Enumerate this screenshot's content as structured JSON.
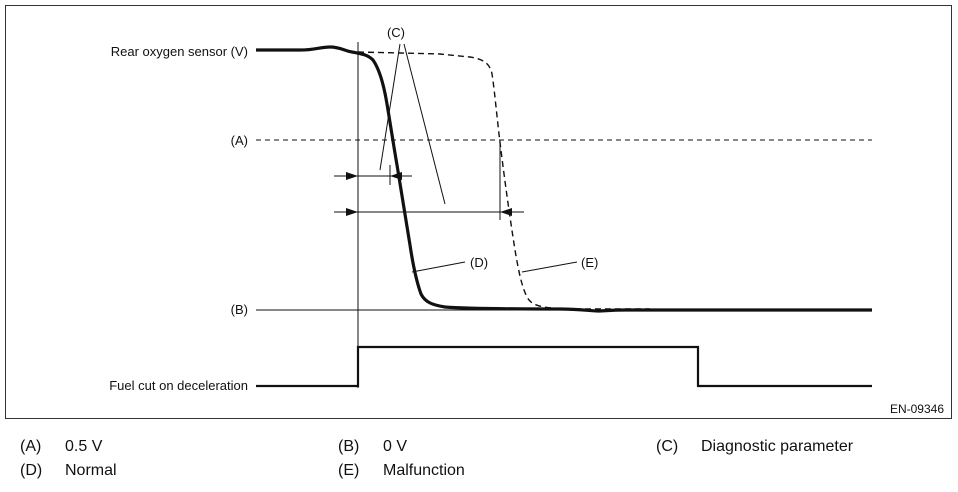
{
  "diagram": {
    "signal_labels": {
      "rear_oxygen_sensor": "Rear oxygen sensor (V)",
      "fuel_cut": "Fuel cut on deceleration"
    },
    "level_labels": {
      "a": "(A)",
      "b": "(B)"
    },
    "callouts": {
      "c": "(C)",
      "d": "(D)",
      "e": "(E)"
    },
    "figure_code": "EN-09346"
  },
  "legend": [
    {
      "key": "(A)",
      "value": "0.5 V"
    },
    {
      "key": "(B)",
      "value": "0 V"
    },
    {
      "key": "(C)",
      "value": "Diagnostic parameter"
    },
    {
      "key": "(D)",
      "value": "Normal"
    },
    {
      "key": "(E)",
      "value": "Malfunction"
    }
  ]
}
